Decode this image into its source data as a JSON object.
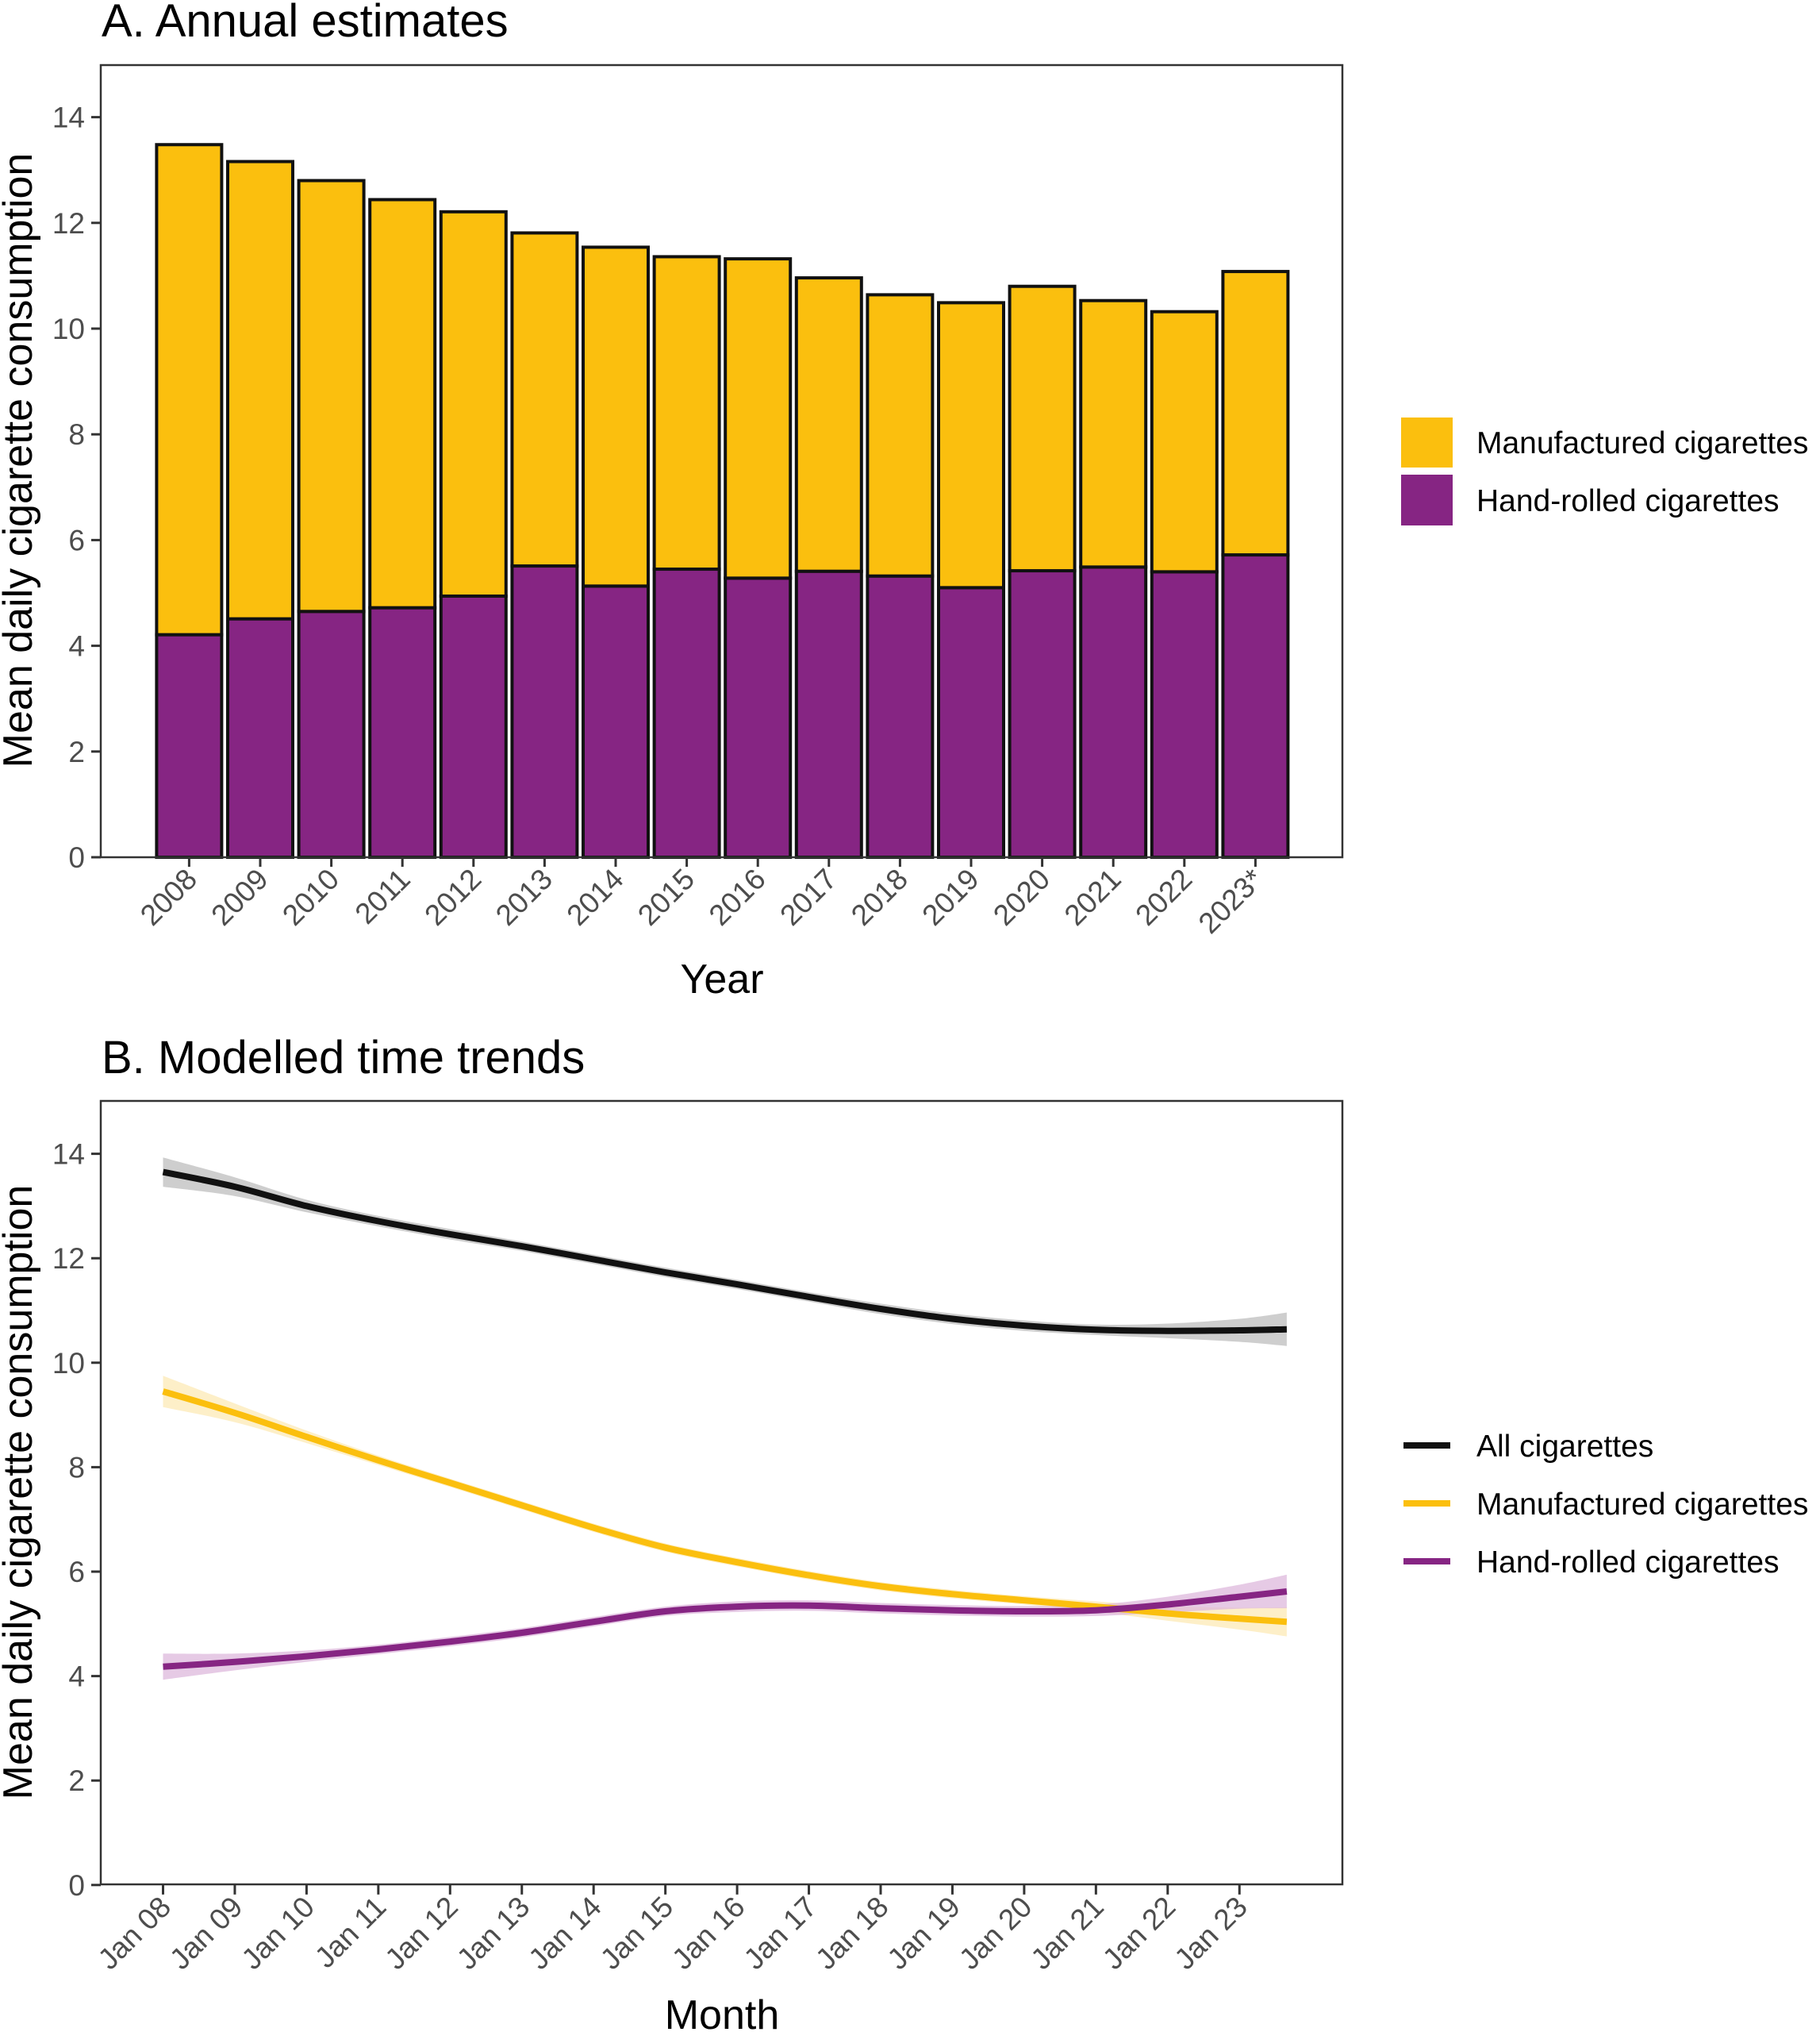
{
  "chart_data": [
    {
      "id": "panel_a",
      "type": "bar",
      "stacked": true,
      "title": "A. Annual estimates",
      "xlabel": "Year",
      "ylabel": "Mean daily cigarette consumption",
      "ylim": [
        0,
        15
      ],
      "yticks": [
        0,
        2,
        4,
        6,
        8,
        10,
        12,
        14
      ],
      "grid": false,
      "legend_position": "right",
      "categories": [
        "2008",
        "2009",
        "2010",
        "2011",
        "2012",
        "2013",
        "2014",
        "2015",
        "2016",
        "2017",
        "2018",
        "2019",
        "2020",
        "2021",
        "2022",
        "2023*"
      ],
      "series": [
        {
          "name": "Hand-rolled cigarettes",
          "color": "#862583",
          "values": [
            4.21,
            4.51,
            4.65,
            4.72,
            4.94,
            5.51,
            5.13,
            5.45,
            5.28,
            5.41,
            5.32,
            5.1,
            5.42,
            5.49,
            5.4,
            5.72
          ]
        },
        {
          "name": "Manufactured cigarettes",
          "color": "#FBBF0E",
          "values": [
            9.27,
            8.65,
            8.15,
            7.72,
            7.27,
            6.3,
            6.41,
            5.91,
            6.04,
            5.55,
            5.32,
            5.39,
            5.38,
            5.04,
            4.92,
            5.36
          ]
        }
      ],
      "legend": [
        {
          "label": "Manufactured cigarettes",
          "color": "#FBBF0E"
        },
        {
          "label": "Hand-rolled cigarettes",
          "color": "#862583"
        }
      ]
    },
    {
      "id": "panel_b",
      "type": "line",
      "title": "B. Modelled time trends",
      "xlabel": "Month",
      "ylabel": "Mean daily cigarette consumption",
      "ylim": [
        0,
        15
      ],
      "yticks": [
        0,
        2,
        4,
        6,
        8,
        10,
        12,
        14
      ],
      "grid": false,
      "legend_position": "right",
      "x_unit": "years since Jan 2008",
      "x_range": [
        0,
        15.66
      ],
      "xtick_labels": [
        "Jan 08",
        "Jan 09",
        "Jan 10",
        "Jan 11",
        "Jan 12",
        "Jan 13",
        "Jan 14",
        "Jan 15",
        "Jan 16",
        "Jan 17",
        "Jan 18",
        "Jan 19",
        "Jan 20",
        "Jan 21",
        "Jan 22",
        "Jan 23"
      ],
      "x": [
        0,
        1,
        2,
        3,
        4,
        5,
        6,
        7,
        8,
        9,
        10,
        11,
        12,
        13,
        14,
        15,
        15.66
      ],
      "series": [
        {
          "name": "All cigarettes",
          "color": "#111111",
          "ribbon_color": "#BDBDBD",
          "values": [
            13.65,
            13.37,
            13.0,
            12.71,
            12.46,
            12.23,
            11.98,
            11.73,
            11.5,
            11.26,
            11.03,
            10.84,
            10.71,
            10.63,
            10.61,
            10.62,
            10.64
          ],
          "ci_halfwidth": [
            0.28,
            0.18,
            0.12,
            0.1,
            0.1,
            0.09,
            0.09,
            0.09,
            0.09,
            0.09,
            0.1,
            0.1,
            0.1,
            0.1,
            0.14,
            0.22,
            0.32
          ]
        },
        {
          "name": "Manufactured cigarettes",
          "color": "#FBBF0E",
          "ribbon_color": "#FCE9B5",
          "values": [
            9.45,
            9.04,
            8.58,
            8.13,
            7.7,
            7.27,
            6.84,
            6.46,
            6.18,
            5.93,
            5.72,
            5.57,
            5.45,
            5.33,
            5.2,
            5.1,
            5.04
          ],
          "ci_halfwidth": [
            0.3,
            0.18,
            0.12,
            0.09,
            0.08,
            0.08,
            0.08,
            0.08,
            0.08,
            0.08,
            0.08,
            0.08,
            0.08,
            0.1,
            0.14,
            0.21,
            0.28
          ]
        },
        {
          "name": "Hand-rolled cigarettes",
          "color": "#862583",
          "ribbon_color": "#DDB8DC",
          "values": [
            4.18,
            4.27,
            4.38,
            4.51,
            4.66,
            4.83,
            5.04,
            5.24,
            5.33,
            5.35,
            5.3,
            5.26,
            5.24,
            5.26,
            5.37,
            5.52,
            5.62
          ],
          "ci_halfwidth": [
            0.25,
            0.16,
            0.11,
            0.09,
            0.09,
            0.09,
            0.09,
            0.09,
            0.1,
            0.1,
            0.1,
            0.1,
            0.1,
            0.11,
            0.15,
            0.23,
            0.32
          ]
        }
      ],
      "legend": [
        {
          "label": "All cigarettes",
          "color": "#111111"
        },
        {
          "label": "Manufactured cigarettes",
          "color": "#FBBF0E"
        },
        {
          "label": "Hand-rolled cigarettes",
          "color": "#862583"
        }
      ]
    }
  ]
}
